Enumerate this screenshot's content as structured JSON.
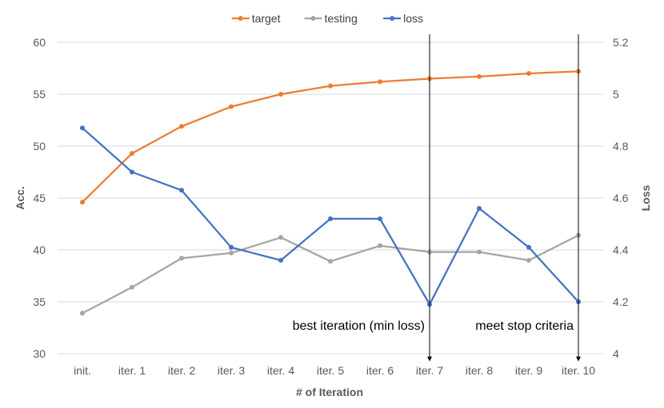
{
  "chart_data": {
    "type": "line",
    "categories": [
      "init.",
      "iter. 1",
      "iter. 2",
      "iter. 3",
      "iter. 4",
      "iter. 5",
      "iter. 6",
      "iter. 7",
      "iter. 8",
      "iter. 9",
      "iter. 10"
    ],
    "xlabel": "# of Iteration",
    "ylabel": "Acc.",
    "y2label": "Loss",
    "ylim": [
      30,
      60
    ],
    "yticks": [
      "30",
      "35",
      "40",
      "45",
      "50",
      "55",
      "60"
    ],
    "y2lim": [
      4,
      5.2
    ],
    "y2ticks": [
      "4",
      "4.2",
      "4.4",
      "4.6",
      "4.8",
      "5",
      "5.2"
    ],
    "grid": true,
    "legend_position": "top",
    "series": [
      {
        "name": "target",
        "axis": "left",
        "color": "#ED7D31",
        "values": [
          44.6,
          49.3,
          51.9,
          53.8,
          55.0,
          55.8,
          56.2,
          56.5,
          56.7,
          57.0,
          57.2
        ]
      },
      {
        "name": "testing",
        "axis": "left",
        "color": "#A5A5A5",
        "values": [
          33.9,
          36.4,
          39.2,
          39.7,
          41.2,
          38.9,
          40.4,
          39.8,
          39.8,
          39.0,
          41.4
        ]
      },
      {
        "name": "loss",
        "axis": "right",
        "color": "#4472C4",
        "values": [
          4.87,
          4.7,
          4.63,
          4.41,
          4.36,
          4.52,
          4.52,
          4.19,
          4.56,
          4.41,
          4.2
        ]
      }
    ],
    "annotations": [
      {
        "text": "best iteration (min loss)",
        "category": "iter. 7"
      },
      {
        "text": "meet stop criteria",
        "category": "iter. 10"
      }
    ]
  }
}
